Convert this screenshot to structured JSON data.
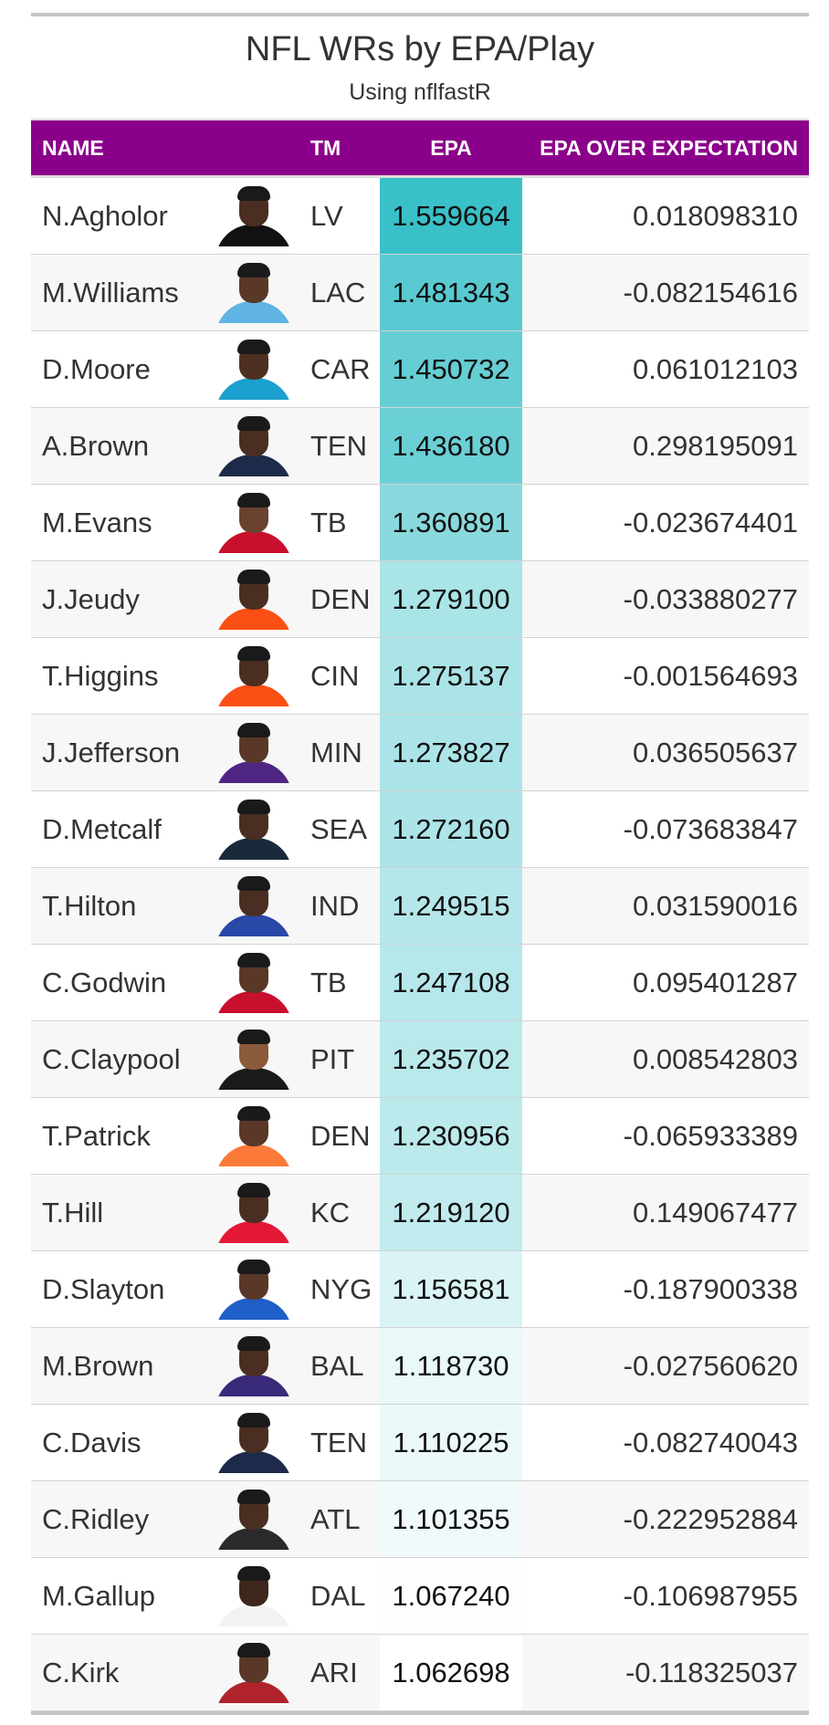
{
  "title": "NFL WRs by EPA/Play",
  "subtitle": "Using nflfastR",
  "columns": {
    "name": "NAME",
    "team": "TM",
    "epa": "EPA",
    "oe": "EPA OVER EXPECTATION"
  },
  "colors": {
    "header_bg": "#8b008b",
    "epa_scale_high": "#3ac0c8",
    "epa_scale_low": "#ffffff"
  },
  "rows": [
    {
      "name": "N.Agholor",
      "team": "LV",
      "epa": "1.559664",
      "oe": "0.018098310",
      "epa_value": 1.559664,
      "jersey": "#111111",
      "skin": "#4a2e22"
    },
    {
      "name": "M.Williams",
      "team": "LAC",
      "epa": "1.481343",
      "oe": "-0.082154616",
      "epa_value": 1.481343,
      "jersey": "#5fb4e4",
      "skin": "#5a3828"
    },
    {
      "name": "D.Moore",
      "team": "CAR",
      "epa": "1.450732",
      "oe": "0.061012103",
      "epa_value": 1.450732,
      "jersey": "#1ca0cf",
      "skin": "#4e3022"
    },
    {
      "name": "A.Brown",
      "team": "TEN",
      "epa": "1.436180",
      "oe": "0.298195091",
      "epa_value": 1.43618,
      "jersey": "#1e2a4a",
      "skin": "#4a2e22"
    },
    {
      "name": "M.Evans",
      "team": "TB",
      "epa": "1.360891",
      "oe": "-0.023674401",
      "epa_value": 1.360891,
      "jersey": "#c8102e",
      "skin": "#6b4230"
    },
    {
      "name": "J.Jeudy",
      "team": "DEN",
      "epa": "1.279100",
      "oe": "-0.033880277",
      "epa_value": 1.2791,
      "jersey": "#fb4f14",
      "skin": "#4a2e22"
    },
    {
      "name": "T.Higgins",
      "team": "CIN",
      "epa": "1.275137",
      "oe": "-0.001564693",
      "epa_value": 1.275137,
      "jersey": "#fb4f14",
      "skin": "#4a2e22"
    },
    {
      "name": "J.Jefferson",
      "team": "MIN",
      "epa": "1.273827",
      "oe": "0.036505637",
      "epa_value": 1.273827,
      "jersey": "#4f2683",
      "skin": "#5a3828"
    },
    {
      "name": "D.Metcalf",
      "team": "SEA",
      "epa": "1.272160",
      "oe": "-0.073683847",
      "epa_value": 1.27216,
      "jersey": "#1b2a3a",
      "skin": "#4a2e22"
    },
    {
      "name": "T.Hilton",
      "team": "IND",
      "epa": "1.249515",
      "oe": "0.031590016",
      "epa_value": 1.249515,
      "jersey": "#2a48a8",
      "skin": "#4a2e22"
    },
    {
      "name": "C.Godwin",
      "team": "TB",
      "epa": "1.247108",
      "oe": "0.095401287",
      "epa_value": 1.247108,
      "jersey": "#c8102e",
      "skin": "#5a3828"
    },
    {
      "name": "C.Claypool",
      "team": "PIT",
      "epa": "1.235702",
      "oe": "0.008542803",
      "epa_value": 1.235702,
      "jersey": "#1a1a1a",
      "skin": "#8a5a3a"
    },
    {
      "name": "T.Patrick",
      "team": "DEN",
      "epa": "1.230956",
      "oe": "-0.065933389",
      "epa_value": 1.230956,
      "jersey": "#fb7a3a",
      "skin": "#5a3828"
    },
    {
      "name": "T.Hill",
      "team": "KC",
      "epa": "1.219120",
      "oe": "0.149067477",
      "epa_value": 1.21912,
      "jersey": "#e31837",
      "skin": "#4a2e22"
    },
    {
      "name": "D.Slayton",
      "team": "NYG",
      "epa": "1.156581",
      "oe": "-0.187900338",
      "epa_value": 1.156581,
      "jersey": "#1f5fc8",
      "skin": "#5a3828"
    },
    {
      "name": "M.Brown",
      "team": "BAL",
      "epa": "1.118730",
      "oe": "-0.027560620",
      "epa_value": 1.11873,
      "jersey": "#3a2a7a",
      "skin": "#4a2e22"
    },
    {
      "name": "C.Davis",
      "team": "TEN",
      "epa": "1.110225",
      "oe": "-0.082740043",
      "epa_value": 1.110225,
      "jersey": "#1e2a4a",
      "skin": "#4a2e22"
    },
    {
      "name": "C.Ridley",
      "team": "ATL",
      "epa": "1.101355",
      "oe": "-0.222952884",
      "epa_value": 1.101355,
      "jersey": "#2a2a2a",
      "skin": "#4a2e22"
    },
    {
      "name": "M.Gallup",
      "team": "DAL",
      "epa": "1.067240",
      "oe": "-0.106987955",
      "epa_value": 1.06724,
      "jersey": "#f2f2f2",
      "skin": "#3e261c"
    },
    {
      "name": "C.Kirk",
      "team": "ARI",
      "epa": "1.062698",
      "oe": "-0.118325037",
      "epa_value": 1.062698,
      "jersey": "#b0232a",
      "skin": "#5a3828"
    }
  ]
}
